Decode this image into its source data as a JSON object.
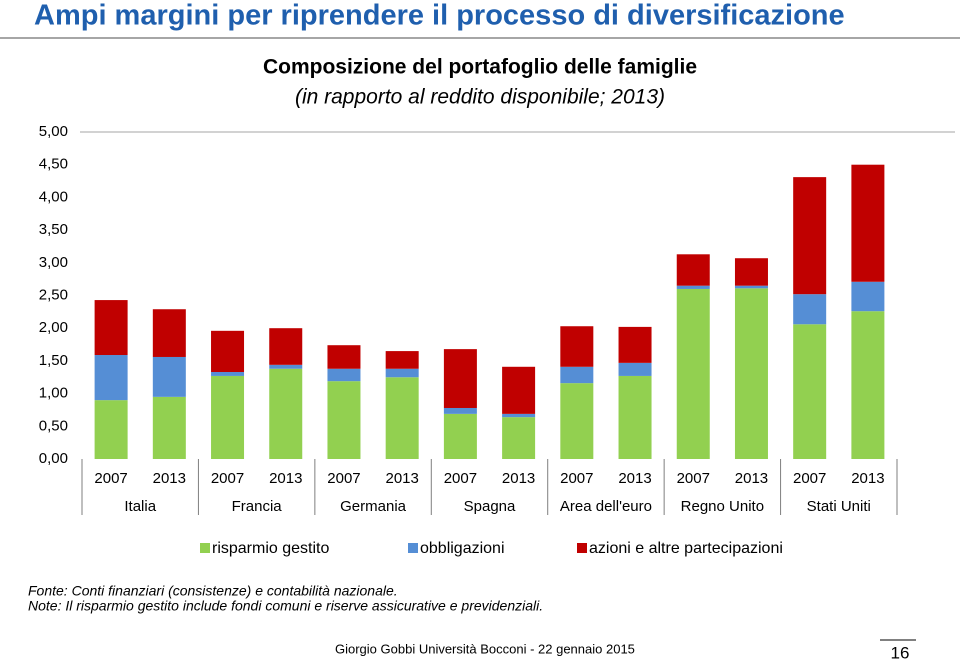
{
  "slide": {
    "title": "Ampi margini per riprendere il processo di diversificazione",
    "notes": [
      "Fonte: Conti finanziari (consistenze) e contabilità nazionale.",
      "Note: Il risparmio gestito include fondi comuni e riserve assicurative e previdenziali."
    ],
    "footer": "Giorgio Gobbi  Università Bocconi - 22 gennaio 2015",
    "page": "16"
  },
  "chart_data": {
    "type": "stacked_bar",
    "title": "Composizione del portafoglio delle famiglie",
    "subtitle": "(in rapporto al reddito disponibile; 2013)",
    "categories": [
      "2007",
      "2013",
      "2007",
      "2013",
      "2007",
      "2013",
      "2007",
      "2013",
      "2007",
      "2013",
      "2007",
      "2013",
      "2007",
      "2013"
    ],
    "groups": [
      "Italia",
      "Francia",
      "Germania",
      "Spagna",
      "Area dell'euro",
      "Regno Unito",
      "Stati Uniti"
    ],
    "series": [
      {
        "name": "risparmio gestito",
        "color": "#92d050",
        "values": [
          0.9,
          0.95,
          1.27,
          1.38,
          1.19,
          1.25,
          0.69,
          0.64,
          1.16,
          1.27,
          2.6,
          2.61,
          2.06,
          2.26
        ]
      },
      {
        "name": "obbligazioni",
        "color": "#558ed5",
        "values": [
          0.69,
          0.61,
          0.06,
          0.06,
          0.19,
          0.13,
          0.09,
          0.05,
          0.25,
          0.2,
          0.05,
          0.04,
          0.46,
          0.45
        ]
      },
      {
        "name": "azioni e altre partecipazioni",
        "color": "#c00000",
        "values": [
          0.84,
          0.73,
          0.63,
          0.56,
          0.36,
          0.27,
          0.9,
          0.72,
          0.62,
          0.55,
          0.48,
          0.42,
          1.79,
          1.79
        ]
      }
    ],
    "ylim": [
      0,
      5
    ],
    "yticks": [
      {
        "value": 0,
        "label": "0,00"
      },
      {
        "value": 0.5,
        "label": "0,50"
      },
      {
        "value": 1,
        "label": "1,00"
      },
      {
        "value": 1.5,
        "label": "1,50"
      },
      {
        "value": 2,
        "label": "2,00"
      },
      {
        "value": 2.5,
        "label": "2,50"
      },
      {
        "value": 3,
        "label": "3,00"
      },
      {
        "value": 3.5,
        "label": "3,50"
      },
      {
        "value": 4,
        "label": "4,00"
      },
      {
        "value": 4.5,
        "label": "4,50"
      },
      {
        "value": 5,
        "label": "5,00"
      }
    ],
    "grid": false
  }
}
